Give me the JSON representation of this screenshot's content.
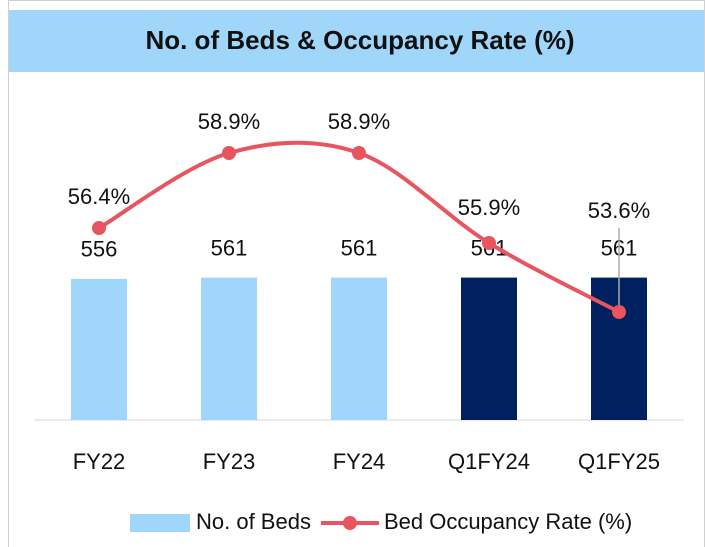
{
  "chart_data": {
    "type": "bar_line",
    "title": "No. of Beds & Occupancy Rate (%)",
    "categories": [
      "FY22",
      "FY23",
      "FY24",
      "Q1FY24",
      "Q1FY25"
    ],
    "ylim": [
      0,
      1300
    ],
    "y2lim": [
      50,
      61
    ],
    "series": [
      {
        "name": "No. of Beds",
        "type": "bar",
        "color": "#a0d6fa",
        "colors": [
          "#a0d6fa",
          "#a0d6fa",
          "#a0d6fa",
          "#002060",
          "#002060"
        ],
        "values": [
          556,
          561,
          561,
          561,
          561
        ]
      },
      {
        "name": "Bed Occupancy Rate (%)",
        "type": "line",
        "axis": "y2",
        "color": "#e8555f",
        "values": [
          56.4,
          58.9,
          58.9,
          55.9,
          53.6
        ],
        "value_labels": [
          "56.4%",
          "58.9%",
          "58.9%",
          "55.9%",
          "53.6%"
        ]
      }
    ],
    "legend": "bottom"
  }
}
